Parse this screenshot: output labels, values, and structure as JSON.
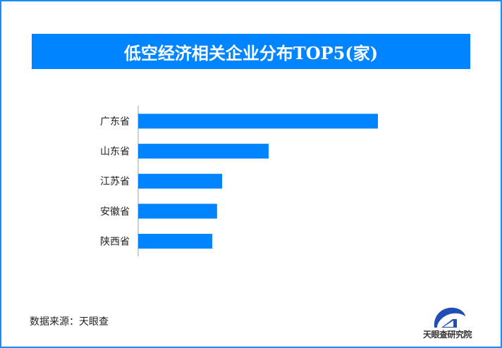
{
  "chart_data": {
    "type": "bar",
    "orientation": "horizontal",
    "title": "低空经济相关企业分布TOP5(家)",
    "categories": [
      "广东省",
      "山东省",
      "江苏省",
      "安徽省",
      "陕西省"
    ],
    "values": [
      100,
      54.4,
      35,
      32.9,
      30.9
    ],
    "xlim": [
      0,
      100
    ],
    "grid": false,
    "legend": "none",
    "bar_color": "#0084ff"
  },
  "source": "数据来源：天眼查",
  "logo": {
    "text": "天眼查研究院",
    "color": "#1f4fb5"
  }
}
